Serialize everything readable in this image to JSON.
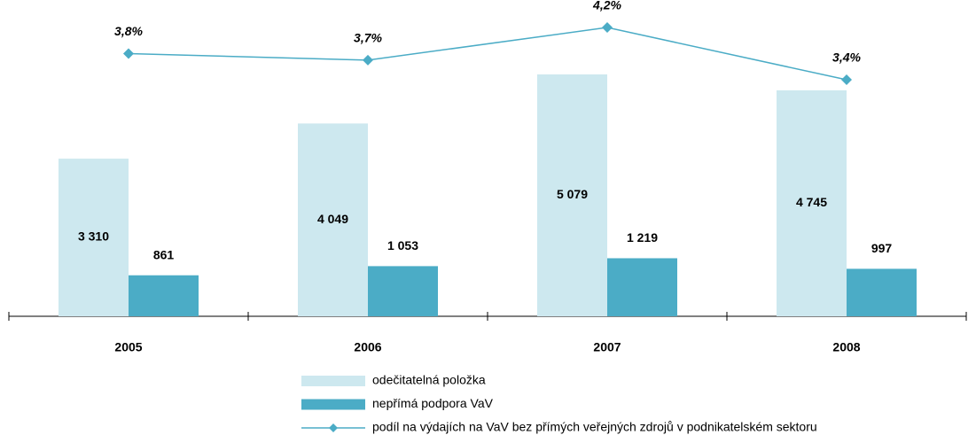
{
  "chart_data": {
    "type": "bar",
    "categories": [
      "2005",
      "2006",
      "2007",
      "2008"
    ],
    "series": [
      {
        "name": "odečitatelná položka",
        "color": "#cde8ef",
        "values": [
          3310,
          4049,
          5079,
          4745
        ],
        "value_labels": [
          "3 310",
          "4 049",
          "5 079",
          "4 745"
        ]
      },
      {
        "name": "nepřímá podpora VaV",
        "color": "#4bacc6",
        "values": [
          861,
          1053,
          1219,
          997
        ],
        "value_labels": [
          "861",
          "1 053",
          "1 219",
          "997"
        ]
      },
      {
        "name": "podíl na výdajích na VaV bez přímých veřejných zdrojů v podnikatelském sektoru",
        "type": "line",
        "axis": "y2",
        "color": "#4bacc6",
        "values": [
          3.8,
          3.7,
          4.2,
          3.4
        ],
        "value_labels": [
          "3,8%",
          "3,7%",
          "4,2%",
          "3,4%"
        ]
      }
    ],
    "ylim": [
      0,
      6000
    ],
    "y2lim": [
      3,
      4.5
    ]
  }
}
